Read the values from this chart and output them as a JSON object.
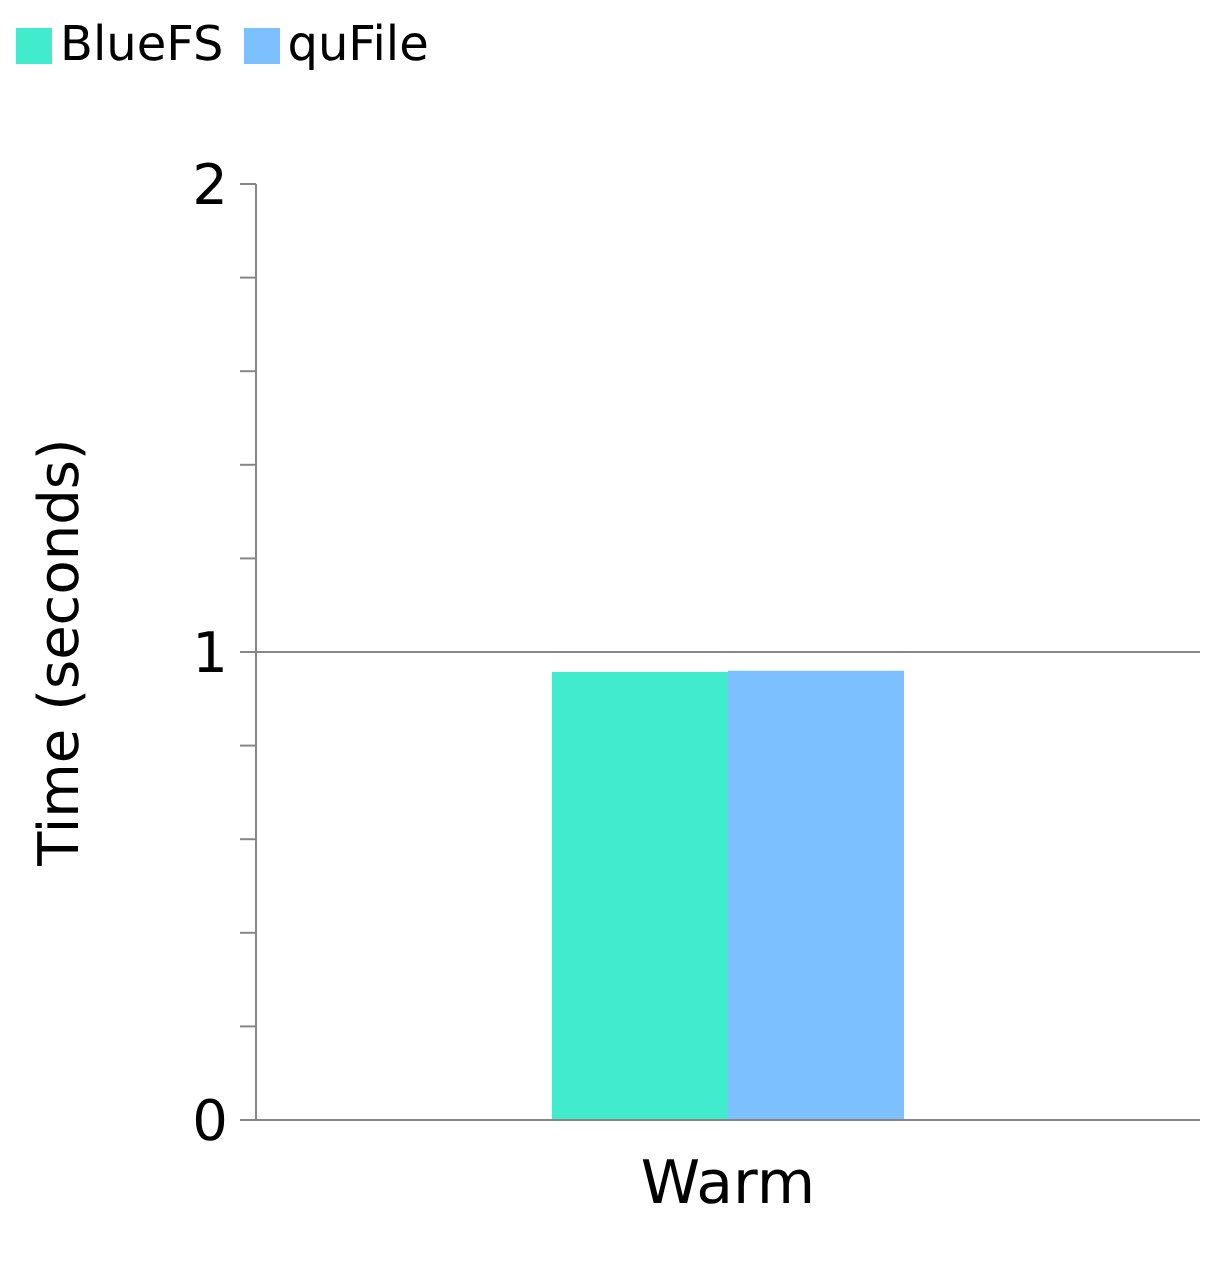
{
  "chart_data": {
    "type": "bar",
    "ylabel": "Time (seconds)",
    "categories": [
      "Warm"
    ],
    "series": [
      {
        "name": "BlueFS",
        "color": "#40eccb",
        "values": [
          0.957
        ]
      },
      {
        "name": "quFile",
        "color": "#7cc0ff",
        "values": [
          0.96
        ]
      }
    ],
    "ylim": [
      0,
      2
    ],
    "yticks": [
      0,
      {
        "value": 0.2,
        "label": null
      },
      {
        "value": 0.4,
        "label": null
      },
      {
        "value": 0.6,
        "label": null
      },
      {
        "value": 0.8,
        "label": null
      },
      1,
      {
        "value": 1.2,
        "label": null
      },
      {
        "value": 1.4,
        "label": null
      },
      {
        "value": 1.6,
        "label": null
      },
      {
        "value": 1.8,
        "label": null
      },
      2
    ],
    "ref_lines": [
      {
        "axis": "y",
        "value": 1,
        "color": "#868686"
      }
    ],
    "legend": "top left"
  }
}
